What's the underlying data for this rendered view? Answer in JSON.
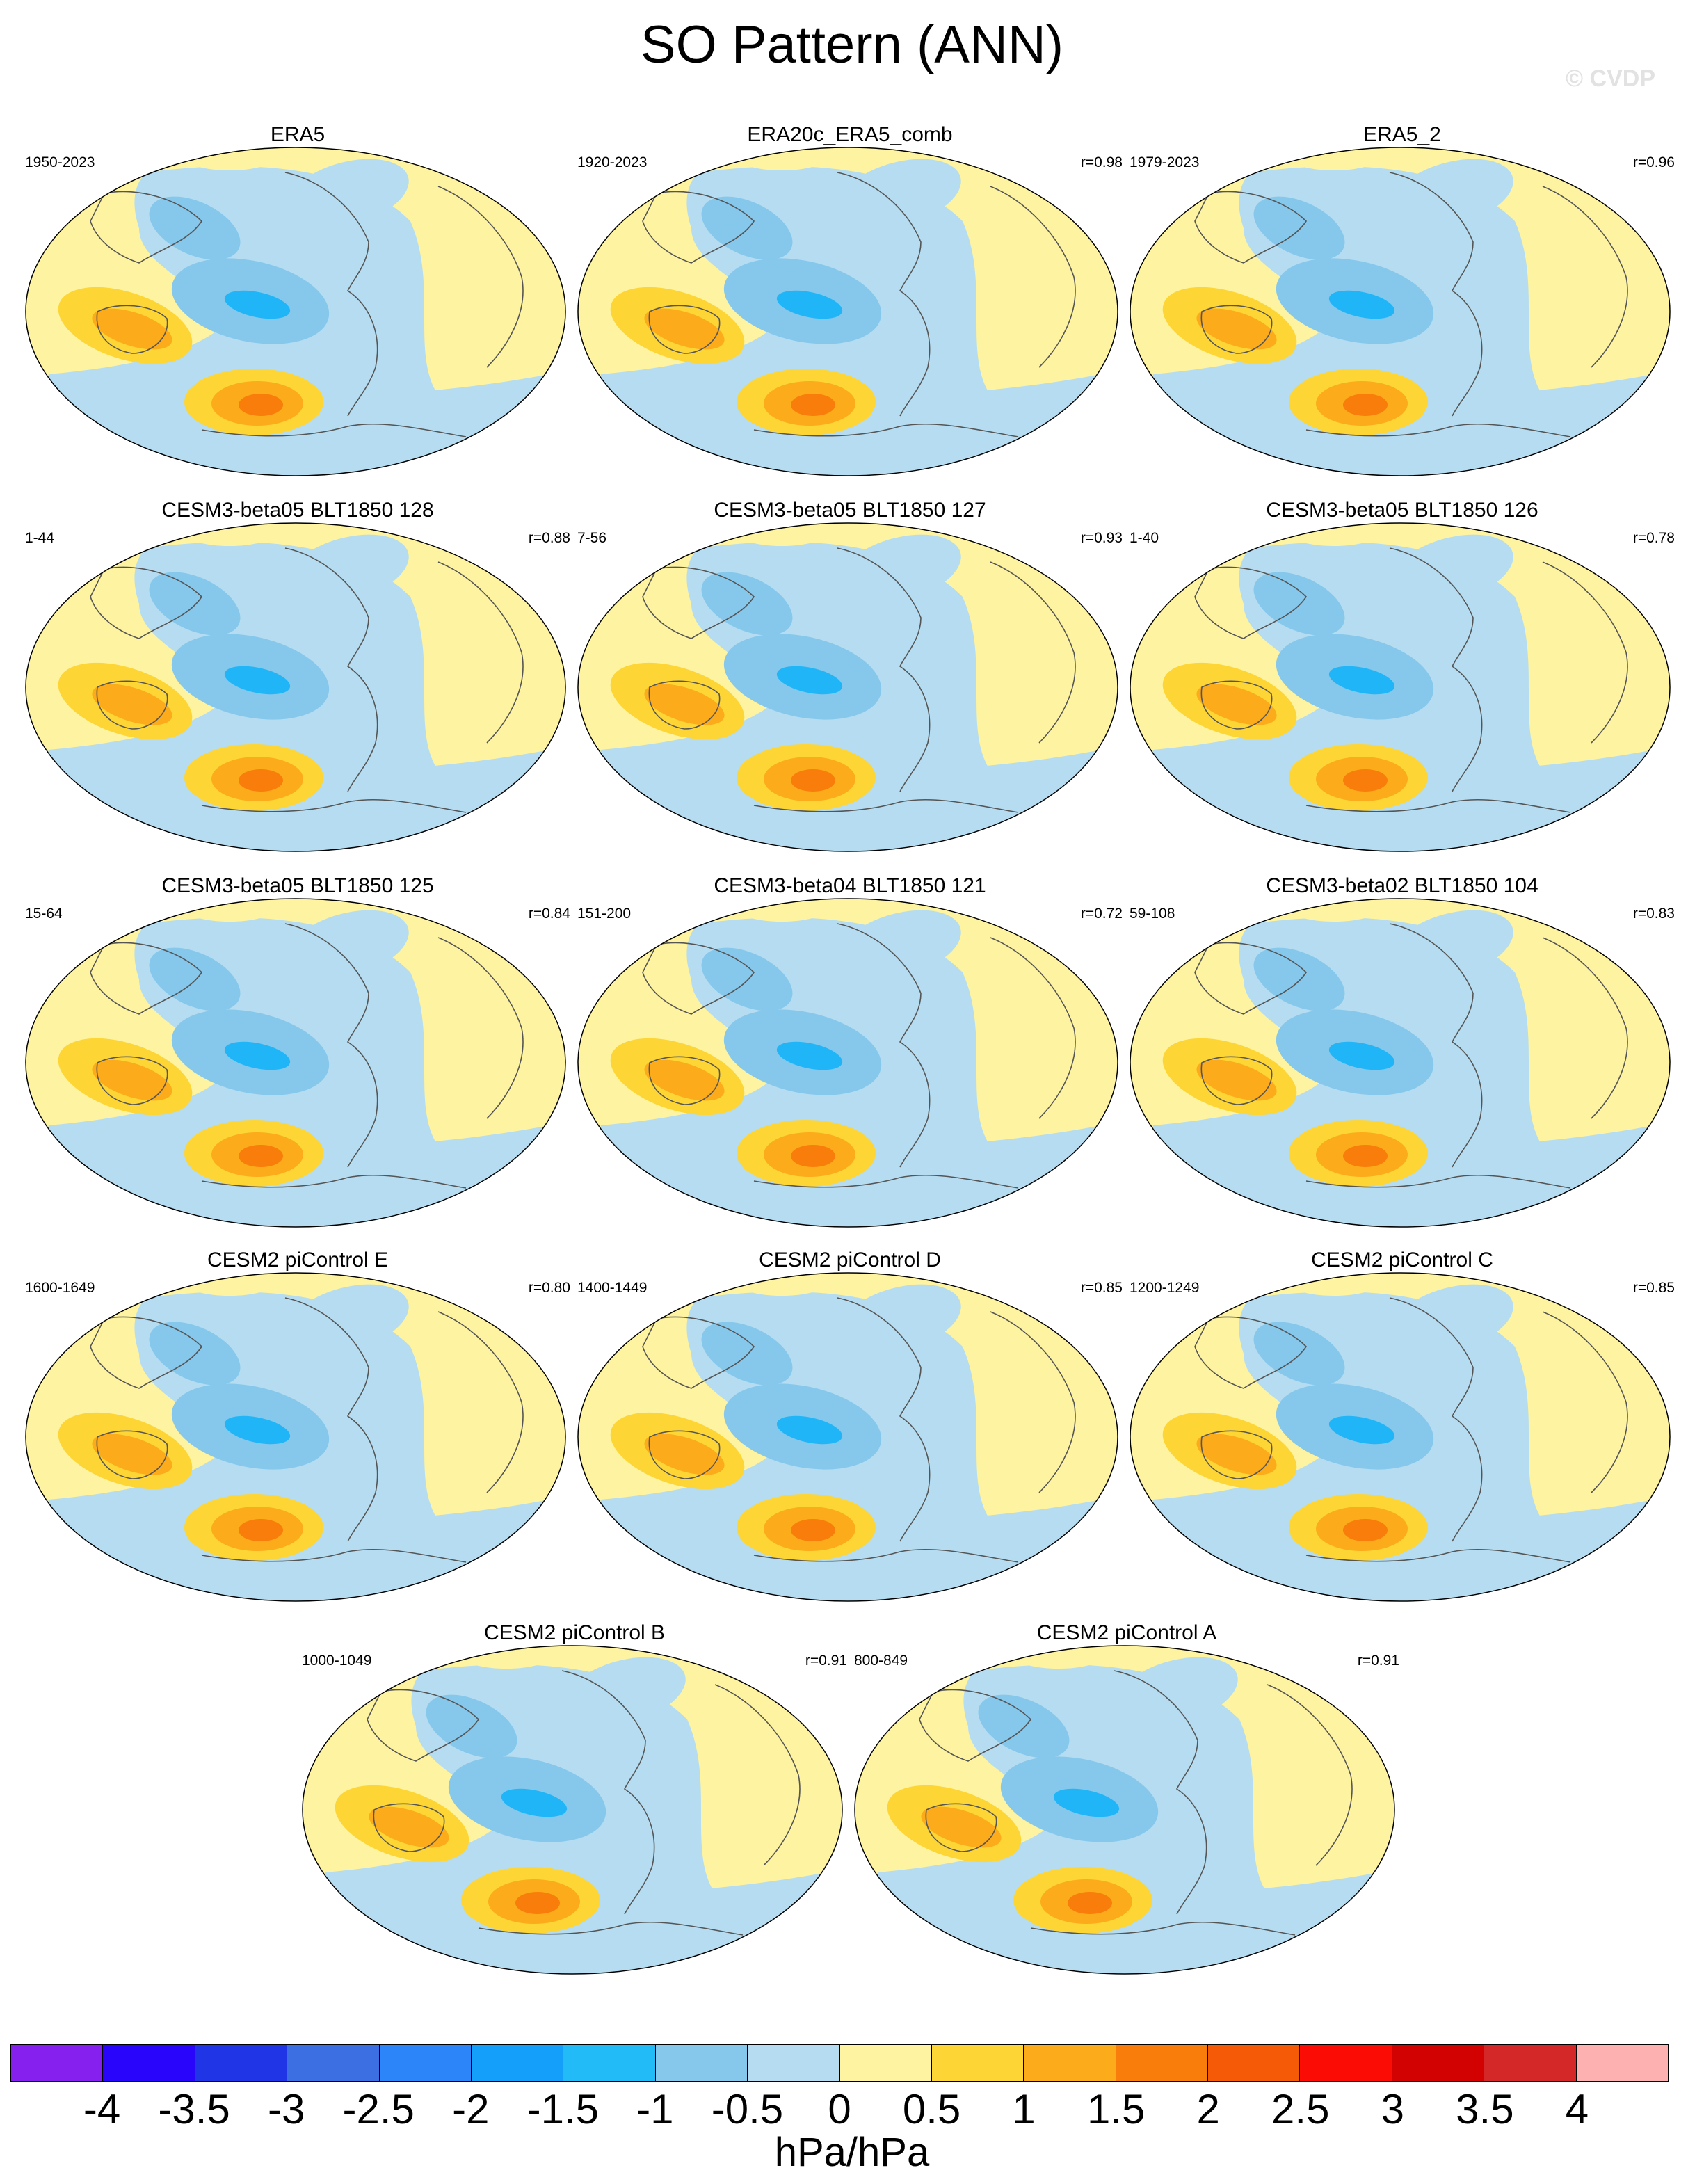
{
  "title": "SO Pattern (ANN)",
  "copyright": "© CVDP",
  "colors": {
    "ocean_low": "#b5dcf0",
    "land_high": "#fdf3a0",
    "neg1": "#86c7ec",
    "neg2": "#1fb5f7",
    "pos1": "#fdd535",
    "pos2": "#fcab1a",
    "pos3": "#f87d0a",
    "coast": "#555555"
  },
  "panels": [
    {
      "title": "ERA5",
      "period": "1950-2023",
      "corr": ""
    },
    {
      "title": "ERA20c_ERA5_comb",
      "period": "1920-2023",
      "corr": "r=0.98"
    },
    {
      "title": "ERA5_2",
      "period": "1979-2023",
      "corr": "r=0.96"
    },
    {
      "title": "CESM3-beta05 BLT1850 128",
      "period": "1-44",
      "corr": "r=0.88"
    },
    {
      "title": "CESM3-beta05 BLT1850 127",
      "period": "7-56",
      "corr": "r=0.93"
    },
    {
      "title": "CESM3-beta05 BLT1850 126",
      "period": "1-40",
      "corr": "r=0.78"
    },
    {
      "title": "CESM3-beta05 BLT1850 125",
      "period": "15-64",
      "corr": "r=0.84"
    },
    {
      "title": "CESM3-beta04 BLT1850 121",
      "period": "151-200",
      "corr": "r=0.72"
    },
    {
      "title": "CESM3-beta02 BLT1850 104",
      "period": "59-108",
      "corr": "r=0.83"
    },
    {
      "title": "CESM2 piControl E",
      "period": "1600-1649",
      "corr": "r=0.80"
    },
    {
      "title": "CESM2 piControl D",
      "period": "1400-1449",
      "corr": "r=0.85"
    },
    {
      "title": "CESM2 piControl C",
      "period": "1200-1249",
      "corr": "r=0.85"
    },
    {
      "title": "CESM2 piControl B",
      "period": "1000-1049",
      "corr": "r=0.91"
    },
    {
      "title": "CESM2 piControl A",
      "period": "800-849",
      "corr": "r=0.91"
    }
  ],
  "colorbar": {
    "colors": [
      "#8520ee",
      "#2a05fb",
      "#2035e6",
      "#3c6fe2",
      "#2d86f9",
      "#149ffa",
      "#22bbf7",
      "#86c7ec",
      "#b5dcf0",
      "#fdf3a0",
      "#fdd535",
      "#fcab1a",
      "#f87d0a",
      "#f55a07",
      "#fb0c04",
      "#d30202",
      "#d42828",
      "#fdb1b1"
    ],
    "labels": [
      "-4",
      "-3.5",
      "-3",
      "-2.5",
      "-2",
      "-1.5",
      "-1",
      "-0.5",
      "0",
      "0.5",
      "1",
      "1.5",
      "2",
      "2.5",
      "3",
      "3.5",
      "4"
    ],
    "units": "hPa/hPa"
  }
}
